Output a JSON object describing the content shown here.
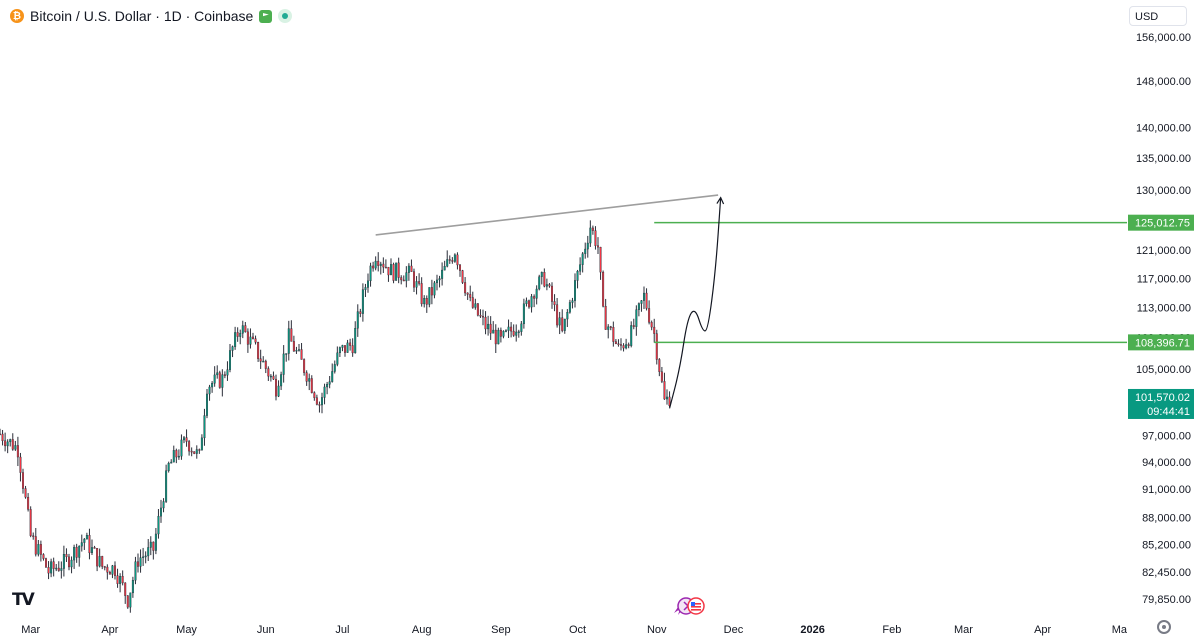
{
  "header": {
    "coin_glyph": "₿",
    "title": "Bitcoin / U.S. Dollar · 1D · Coinbase",
    "icons": [
      "bitcoin-icon",
      "flag-icon",
      "live-status-icon"
    ]
  },
  "currency_selector": {
    "label": "USD"
  },
  "colors": {
    "up": "#089981",
    "down": "#f23645",
    "level": "#4caf50",
    "trendline": "#9e9e9e",
    "axis_text": "#131722"
  },
  "chart_data": {
    "type": "candlestick",
    "title": "Bitcoin / U.S. Dollar · 1D · Coinbase",
    "y_scale": "log",
    "ylim": [
      78800,
      163000
    ],
    "xlim": [
      "2025-02-17",
      "2026-05-04"
    ],
    "y_ticks": [
      {
        "value": 156000,
        "label": "156,000.00"
      },
      {
        "value": 148000,
        "label": "148,000.00"
      },
      {
        "value": 140000,
        "label": "140,000.00"
      },
      {
        "value": 135000,
        "label": "135,000.00"
      },
      {
        "value": 130000,
        "label": "130,000.00"
      },
      {
        "value": 121000,
        "label": "121,000.00"
      },
      {
        "value": 117000,
        "label": "117,000.00"
      },
      {
        "value": 113000,
        "label": "113,000.00"
      },
      {
        "value": 109000,
        "label": "109,000.00"
      },
      {
        "value": 105000,
        "label": "105,000.00"
      },
      {
        "value": 97000,
        "label": "97,000.00"
      },
      {
        "value": 94000,
        "label": "94,000.00"
      },
      {
        "value": 91000,
        "label": "91,000.00"
      },
      {
        "value": 88000,
        "label": "88,000.00"
      },
      {
        "value": 85200,
        "label": "85,200.00"
      },
      {
        "value": 82450,
        "label": "82,450.00"
      },
      {
        "value": 79850,
        "label": "79,850.00"
      }
    ],
    "x_ticks": [
      {
        "date": "2025-03-01",
        "label": "Mar"
      },
      {
        "date": "2025-04-01",
        "label": "Apr"
      },
      {
        "date": "2025-05-01",
        "label": "May"
      },
      {
        "date": "2025-06-01",
        "label": "Jun"
      },
      {
        "date": "2025-07-01",
        "label": "Jul"
      },
      {
        "date": "2025-08-01",
        "label": "Aug"
      },
      {
        "date": "2025-09-01",
        "label": "Sep"
      },
      {
        "date": "2025-10-01",
        "label": "Oct"
      },
      {
        "date": "2025-11-01",
        "label": "Nov"
      },
      {
        "date": "2025-12-01",
        "label": "Dec"
      },
      {
        "date": "2026-01-01",
        "label": "2026",
        "bold": true
      },
      {
        "date": "2026-02-01",
        "label": "Feb"
      },
      {
        "date": "2026-03-01",
        "label": "Mar"
      },
      {
        "date": "2026-04-01",
        "label": "Apr"
      },
      {
        "date": "2026-05-01",
        "label": "Ma"
      }
    ],
    "price_path": [
      {
        "date": "2025-02-17",
        "close": 97200
      },
      {
        "date": "2025-02-24",
        "close": 95500
      },
      {
        "date": "2025-03-01",
        "close": 86000
      },
      {
        "date": "2025-03-08",
        "close": 82500
      },
      {
        "date": "2025-03-15",
        "close": 83500
      },
      {
        "date": "2025-03-22",
        "close": 85800
      },
      {
        "date": "2025-03-29",
        "close": 83000
      },
      {
        "date": "2025-04-03",
        "close": 82800
      },
      {
        "date": "2025-04-08",
        "close": 79800
      },
      {
        "date": "2025-04-12",
        "close": 83700
      },
      {
        "date": "2025-04-18",
        "close": 84700
      },
      {
        "date": "2025-04-24",
        "close": 93500
      },
      {
        "date": "2025-05-01",
        "close": 96500
      },
      {
        "date": "2025-05-06",
        "close": 94500
      },
      {
        "date": "2025-05-09",
        "close": 103000
      },
      {
        "date": "2025-05-15",
        "close": 103800
      },
      {
        "date": "2025-05-22",
        "close": 110500
      },
      {
        "date": "2025-05-28",
        "close": 107500
      },
      {
        "date": "2025-06-05",
        "close": 102800
      },
      {
        "date": "2025-06-10",
        "close": 109000
      },
      {
        "date": "2025-06-17",
        "close": 104500
      },
      {
        "date": "2025-06-22",
        "close": 100800
      },
      {
        "date": "2025-06-30",
        "close": 107200
      },
      {
        "date": "2025-07-05",
        "close": 108200
      },
      {
        "date": "2025-07-11",
        "close": 117500
      },
      {
        "date": "2025-07-14",
        "close": 120500
      },
      {
        "date": "2025-07-20",
        "close": 118000
      },
      {
        "date": "2025-07-28",
        "close": 117500
      },
      {
        "date": "2025-08-02",
        "close": 113500
      },
      {
        "date": "2025-08-08",
        "close": 116800
      },
      {
        "date": "2025-08-14",
        "close": 121000
      },
      {
        "date": "2025-08-20",
        "close": 113500
      },
      {
        "date": "2025-08-26",
        "close": 110500
      },
      {
        "date": "2025-09-01",
        "close": 108500
      },
      {
        "date": "2025-09-08",
        "close": 111000
      },
      {
        "date": "2025-09-14",
        "close": 115500
      },
      {
        "date": "2025-09-18",
        "close": 117000
      },
      {
        "date": "2025-09-25",
        "close": 109500
      },
      {
        "date": "2025-10-01",
        "close": 117500
      },
      {
        "date": "2025-10-06",
        "close": 124500
      },
      {
        "date": "2025-10-09",
        "close": 121500
      },
      {
        "date": "2025-10-11",
        "close": 112000
      },
      {
        "date": "2025-10-17",
        "close": 107500
      },
      {
        "date": "2025-10-22",
        "close": 109500
      },
      {
        "date": "2025-10-27",
        "close": 114500
      },
      {
        "date": "2025-10-31",
        "close": 109500
      },
      {
        "date": "2025-11-04",
        "close": 101000
      },
      {
        "date": "2025-11-06",
        "close": 101570
      }
    ],
    "horizontal_levels": [
      {
        "value": 125012.75,
        "label": "125,012.75",
        "from_date": "2025-10-31"
      },
      {
        "value": 108396.71,
        "label": "108,396.71",
        "from_date": "2025-10-31"
      }
    ],
    "trendline": {
      "points": [
        {
          "date": "2025-07-14",
          "value": 123200
        },
        {
          "date": "2025-11-25",
          "value": 129200
        }
      ]
    },
    "projection_arrow": [
      {
        "date": "2025-11-06",
        "value": 100200
      },
      {
        "date": "2025-11-10",
        "value": 105000
      },
      {
        "date": "2025-11-13",
        "value": 111500
      },
      {
        "date": "2025-11-16",
        "value": 113000
      },
      {
        "date": "2025-11-19",
        "value": 109800
      },
      {
        "date": "2025-11-21",
        "value": 110000
      },
      {
        "date": "2025-11-24",
        "value": 118000
      },
      {
        "date": "2025-11-26",
        "value": 128800
      }
    ],
    "last_price": {
      "value": 101570.02,
      "label": "101,570.02",
      "countdown": "09:44:41"
    }
  }
}
